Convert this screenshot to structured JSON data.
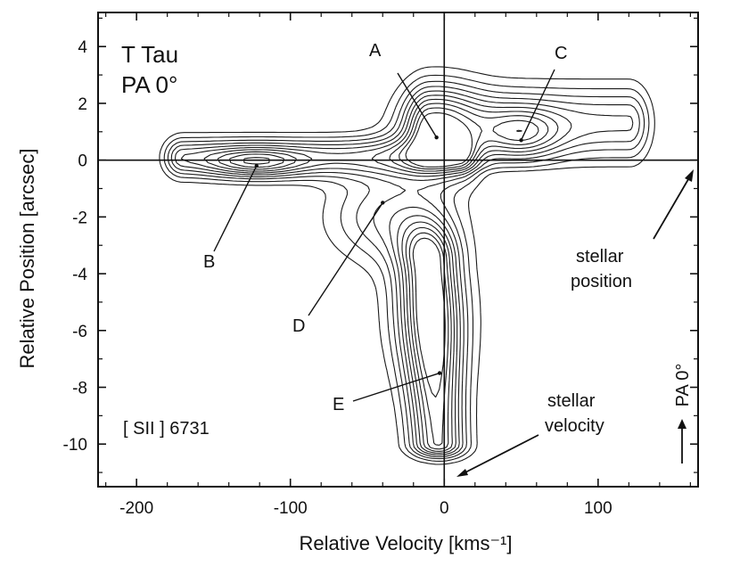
{
  "chart_data": {
    "type": "contour",
    "object_label": "T Tau",
    "pa_label": "PA 0°",
    "line_label": "[ SII ] 6731",
    "xlabel": "Relative Velocity [kms⁻¹]",
    "ylabel": "Relative Position [arcsec]",
    "xlim": [
      -225,
      165
    ],
    "ylim": [
      -11.5,
      5.2
    ],
    "xticks": [
      -200,
      -100,
      0,
      100
    ],
    "xtick_labels": [
      "-200",
      "-100",
      "0",
      "100"
    ],
    "yticks": [
      4,
      2,
      0,
      -2,
      -4,
      -6,
      -8,
      -10
    ],
    "ytick_labels": [
      "4",
      "2",
      "0",
      "-2",
      "-4",
      "-6",
      "-8",
      "-10"
    ],
    "crosshair": {
      "x": 0,
      "y": 0
    },
    "features": [
      {
        "label": "A",
        "x": -5,
        "y": 0.8
      },
      {
        "label": "B",
        "x": -122,
        "y": -0.2
      },
      {
        "label": "C",
        "x": 50,
        "y": 0.7
      },
      {
        "label": "D",
        "x": -40,
        "y": -1.5
      },
      {
        "label": "E",
        "x": -3,
        "y": -7.5
      }
    ],
    "annotations": {
      "stellar_position": [
        "stellar",
        "position"
      ],
      "stellar_velocity": [
        "stellar",
        "velocity"
      ],
      "pa_arrow": "PA 0°"
    },
    "contour_levels": 10
  }
}
